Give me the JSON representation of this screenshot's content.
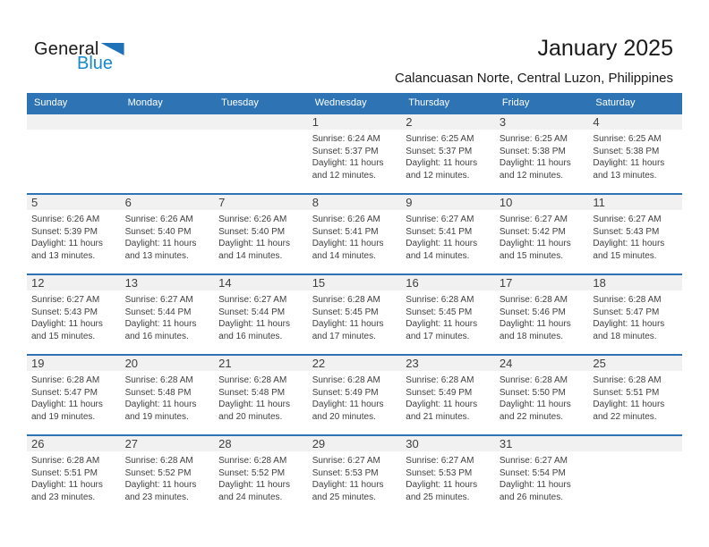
{
  "logo": {
    "part1": "General",
    "part2": "Blue"
  },
  "header": {
    "title": "January 2025",
    "subtitle": "Calancuasan Norte, Central Luzon, Philippines"
  },
  "colors": {
    "header_bar": "#2E74B5",
    "row_separator": "#2E74B5",
    "day_band": "#F1F1F1",
    "text": "#404040",
    "logo_blue": "#1789CC",
    "logo_triangle": "#1F72B8"
  },
  "calendar": {
    "weekdays": [
      "Sunday",
      "Monday",
      "Tuesday",
      "Wednesday",
      "Thursday",
      "Friday",
      "Saturday"
    ],
    "weeks": [
      [
        null,
        null,
        null,
        {
          "day": "1",
          "lines": [
            "Sunrise: 6:24 AM",
            "Sunset: 5:37 PM",
            "Daylight: 11 hours",
            "and 12 minutes."
          ]
        },
        {
          "day": "2",
          "lines": [
            "Sunrise: 6:25 AM",
            "Sunset: 5:37 PM",
            "Daylight: 11 hours",
            "and 12 minutes."
          ]
        },
        {
          "day": "3",
          "lines": [
            "Sunrise: 6:25 AM",
            "Sunset: 5:38 PM",
            "Daylight: 11 hours",
            "and 12 minutes."
          ]
        },
        {
          "day": "4",
          "lines": [
            "Sunrise: 6:25 AM",
            "Sunset: 5:38 PM",
            "Daylight: 11 hours",
            "and 13 minutes."
          ]
        }
      ],
      [
        {
          "day": "5",
          "lines": [
            "Sunrise: 6:26 AM",
            "Sunset: 5:39 PM",
            "Daylight: 11 hours",
            "and 13 minutes."
          ]
        },
        {
          "day": "6",
          "lines": [
            "Sunrise: 6:26 AM",
            "Sunset: 5:40 PM",
            "Daylight: 11 hours",
            "and 13 minutes."
          ]
        },
        {
          "day": "7",
          "lines": [
            "Sunrise: 6:26 AM",
            "Sunset: 5:40 PM",
            "Daylight: 11 hours",
            "and 14 minutes."
          ]
        },
        {
          "day": "8",
          "lines": [
            "Sunrise: 6:26 AM",
            "Sunset: 5:41 PM",
            "Daylight: 11 hours",
            "and 14 minutes."
          ]
        },
        {
          "day": "9",
          "lines": [
            "Sunrise: 6:27 AM",
            "Sunset: 5:41 PM",
            "Daylight: 11 hours",
            "and 14 minutes."
          ]
        },
        {
          "day": "10",
          "lines": [
            "Sunrise: 6:27 AM",
            "Sunset: 5:42 PM",
            "Daylight: 11 hours",
            "and 15 minutes."
          ]
        },
        {
          "day": "11",
          "lines": [
            "Sunrise: 6:27 AM",
            "Sunset: 5:43 PM",
            "Daylight: 11 hours",
            "and 15 minutes."
          ]
        }
      ],
      [
        {
          "day": "12",
          "lines": [
            "Sunrise: 6:27 AM",
            "Sunset: 5:43 PM",
            "Daylight: 11 hours",
            "and 15 minutes."
          ]
        },
        {
          "day": "13",
          "lines": [
            "Sunrise: 6:27 AM",
            "Sunset: 5:44 PM",
            "Daylight: 11 hours",
            "and 16 minutes."
          ]
        },
        {
          "day": "14",
          "lines": [
            "Sunrise: 6:27 AM",
            "Sunset: 5:44 PM",
            "Daylight: 11 hours",
            "and 16 minutes."
          ]
        },
        {
          "day": "15",
          "lines": [
            "Sunrise: 6:28 AM",
            "Sunset: 5:45 PM",
            "Daylight: 11 hours",
            "and 17 minutes."
          ]
        },
        {
          "day": "16",
          "lines": [
            "Sunrise: 6:28 AM",
            "Sunset: 5:45 PM",
            "Daylight: 11 hours",
            "and 17 minutes."
          ]
        },
        {
          "day": "17",
          "lines": [
            "Sunrise: 6:28 AM",
            "Sunset: 5:46 PM",
            "Daylight: 11 hours",
            "and 18 minutes."
          ]
        },
        {
          "day": "18",
          "lines": [
            "Sunrise: 6:28 AM",
            "Sunset: 5:47 PM",
            "Daylight: 11 hours",
            "and 18 minutes."
          ]
        }
      ],
      [
        {
          "day": "19",
          "lines": [
            "Sunrise: 6:28 AM",
            "Sunset: 5:47 PM",
            "Daylight: 11 hours",
            "and 19 minutes."
          ]
        },
        {
          "day": "20",
          "lines": [
            "Sunrise: 6:28 AM",
            "Sunset: 5:48 PM",
            "Daylight: 11 hours",
            "and 19 minutes."
          ]
        },
        {
          "day": "21",
          "lines": [
            "Sunrise: 6:28 AM",
            "Sunset: 5:48 PM",
            "Daylight: 11 hours",
            "and 20 minutes."
          ]
        },
        {
          "day": "22",
          "lines": [
            "Sunrise: 6:28 AM",
            "Sunset: 5:49 PM",
            "Daylight: 11 hours",
            "and 20 minutes."
          ]
        },
        {
          "day": "23",
          "lines": [
            "Sunrise: 6:28 AM",
            "Sunset: 5:49 PM",
            "Daylight: 11 hours",
            "and 21 minutes."
          ]
        },
        {
          "day": "24",
          "lines": [
            "Sunrise: 6:28 AM",
            "Sunset: 5:50 PM",
            "Daylight: 11 hours",
            "and 22 minutes."
          ]
        },
        {
          "day": "25",
          "lines": [
            "Sunrise: 6:28 AM",
            "Sunset: 5:51 PM",
            "Daylight: 11 hours",
            "and 22 minutes."
          ]
        }
      ],
      [
        {
          "day": "26",
          "lines": [
            "Sunrise: 6:28 AM",
            "Sunset: 5:51 PM",
            "Daylight: 11 hours",
            "and 23 minutes."
          ]
        },
        {
          "day": "27",
          "lines": [
            "Sunrise: 6:28 AM",
            "Sunset: 5:52 PM",
            "Daylight: 11 hours",
            "and 23 minutes."
          ]
        },
        {
          "day": "28",
          "lines": [
            "Sunrise: 6:28 AM",
            "Sunset: 5:52 PM",
            "Daylight: 11 hours",
            "and 24 minutes."
          ]
        },
        {
          "day": "29",
          "lines": [
            "Sunrise: 6:27 AM",
            "Sunset: 5:53 PM",
            "Daylight: 11 hours",
            "and 25 minutes."
          ]
        },
        {
          "day": "30",
          "lines": [
            "Sunrise: 6:27 AM",
            "Sunset: 5:53 PM",
            "Daylight: 11 hours",
            "and 25 minutes."
          ]
        },
        {
          "day": "31",
          "lines": [
            "Sunrise: 6:27 AM",
            "Sunset: 5:54 PM",
            "Daylight: 11 hours",
            "and 26 minutes."
          ]
        },
        null
      ]
    ]
  }
}
